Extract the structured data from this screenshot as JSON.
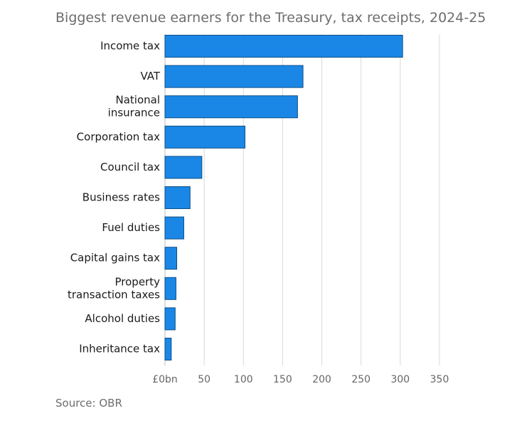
{
  "title": "Biggest revenue earners for the Treasury, tax receipts, 2024-25",
  "source": "Source: OBR",
  "colors": {
    "bar": "#1a87e6",
    "bar_stroke": "#0e4f86",
    "grid": "#d9d9d9"
  },
  "chart_data": {
    "type": "bar",
    "orientation": "horizontal",
    "title": "Biggest revenue earners for the Treasury, tax receipts, 2024-25",
    "categories": [
      [
        "Income tax"
      ],
      [
        "VAT"
      ],
      [
        "National",
        "insurance"
      ],
      [
        "Corporation tax"
      ],
      [
        "Council tax"
      ],
      [
        "Business rates"
      ],
      [
        "Fuel duties"
      ],
      [
        "Capital gains tax"
      ],
      [
        "Property",
        "transaction taxes"
      ],
      [
        "Alcohol duties"
      ],
      [
        "Inheritance tax"
      ]
    ],
    "values": [
      303,
      176,
      169,
      102,
      47,
      32,
      24,
      15,
      14,
      13,
      8
    ],
    "xlim": [
      0,
      350
    ],
    "xticks": [
      0,
      50,
      100,
      150,
      200,
      250,
      300,
      350
    ],
    "xtick_labels": [
      "£0bn",
      "50",
      "100",
      "150",
      "200",
      "250",
      "300",
      "350"
    ],
    "grid": true,
    "legend": false
  }
}
